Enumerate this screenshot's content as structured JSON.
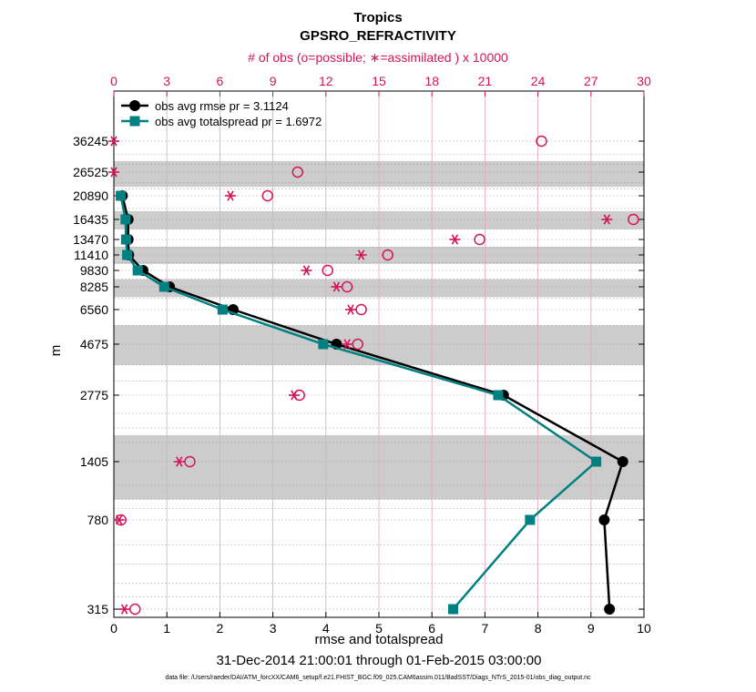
{
  "chart_data": {
    "type": "line",
    "title": "Tropics",
    "subtitle": "GPSRO_REFRACTIVITY",
    "top_axis_label": "# of obs (o=possible; ∗=assimilated ) x 10000",
    "xlabel": "rmse and totalspread",
    "ylabel": "m",
    "date_range": "31-Dec-2014 21:00:01 through 01-Feb-2015 03:00:00",
    "data_file": "data file: /Users/raeder/DAI/ATM_forcXX/CAM6_setup/f.e21.FHIST_BGC.f09_025.CAM6assim.011/BadSST/Diags_NTrS_2015-01/obs_diag_output.nc",
    "xlim": [
      0,
      10
    ],
    "x_ticks": [
      "0",
      "1",
      "2",
      "3",
      "4",
      "5",
      "6",
      "7",
      "8",
      "9",
      "10"
    ],
    "top_xlim": [
      0,
      30
    ],
    "top_ticks": [
      "0",
      "3",
      "6",
      "9",
      "12",
      "15",
      "18",
      "21",
      "24",
      "27",
      "30"
    ],
    "y_tick_labels": [
      "36245",
      "26525",
      "20890",
      "16435",
      "13470",
      "11410",
      "9830",
      "8285",
      "6560",
      "4675",
      "2775",
      "1405",
      "780",
      "315"
    ],
    "levels": [
      36245,
      26525,
      20890,
      16435,
      13470,
      11410,
      9830,
      8285,
      6560,
      4675,
      2775,
      1405,
      780,
      315
    ],
    "series": [
      {
        "name": "obs avg rmse  pr = 3.1124",
        "color": "#000000",
        "marker": "circle",
        "levels": [
          20890,
          16435,
          13470,
          11410,
          9830,
          8285,
          6560,
          4675,
          2775,
          1405,
          780,
          315
        ],
        "values": [
          0.16,
          0.27,
          0.27,
          0.28,
          0.55,
          1.05,
          2.25,
          4.2,
          7.35,
          9.6,
          9.25,
          9.35
        ]
      },
      {
        "name": "obs avg totalspread  pr = 1.6972",
        "color": "#008080",
        "marker": "square",
        "levels": [
          20890,
          16435,
          13470,
          11410,
          9830,
          8285,
          6560,
          4675,
          2775,
          1405,
          780,
          315
        ],
        "values": [
          0.13,
          0.22,
          0.23,
          0.25,
          0.45,
          0.95,
          2.05,
          3.95,
          7.25,
          9.1,
          7.85,
          6.4
        ]
      }
    ],
    "obs_counts": {
      "levels": [
        36245,
        26525,
        20890,
        16435,
        13470,
        11410,
        9830,
        8285,
        6560,
        4675,
        2775,
        1405,
        780,
        315
      ],
      "possible": [
        24.2,
        10.4,
        8.7,
        29.4,
        20.7,
        15.5,
        12.1,
        13.2,
        14.0,
        13.8,
        10.5,
        4.3,
        0.4,
        1.2
      ],
      "assimilated": [
        0.0,
        0.0,
        6.6,
        27.9,
        19.3,
        14.0,
        10.9,
        12.6,
        13.4,
        13.2,
        10.2,
        3.7,
        0.3,
        0.6
      ],
      "possible_label": "possible",
      "assimilated_label": "assimilated"
    },
    "shaded_bands": [
      [
        23000,
        30000
      ],
      [
        15000,
        18000
      ],
      [
        10500,
        12500
      ],
      [
        7500,
        9000
      ],
      [
        3900,
        5700
      ],
      [
        1000,
        1950
      ]
    ],
    "colors": {
      "rmse": "#000000",
      "spread": "#008080",
      "obs": "#d6135a",
      "band": "#cccccc"
    },
    "legend_location": "top-left"
  }
}
